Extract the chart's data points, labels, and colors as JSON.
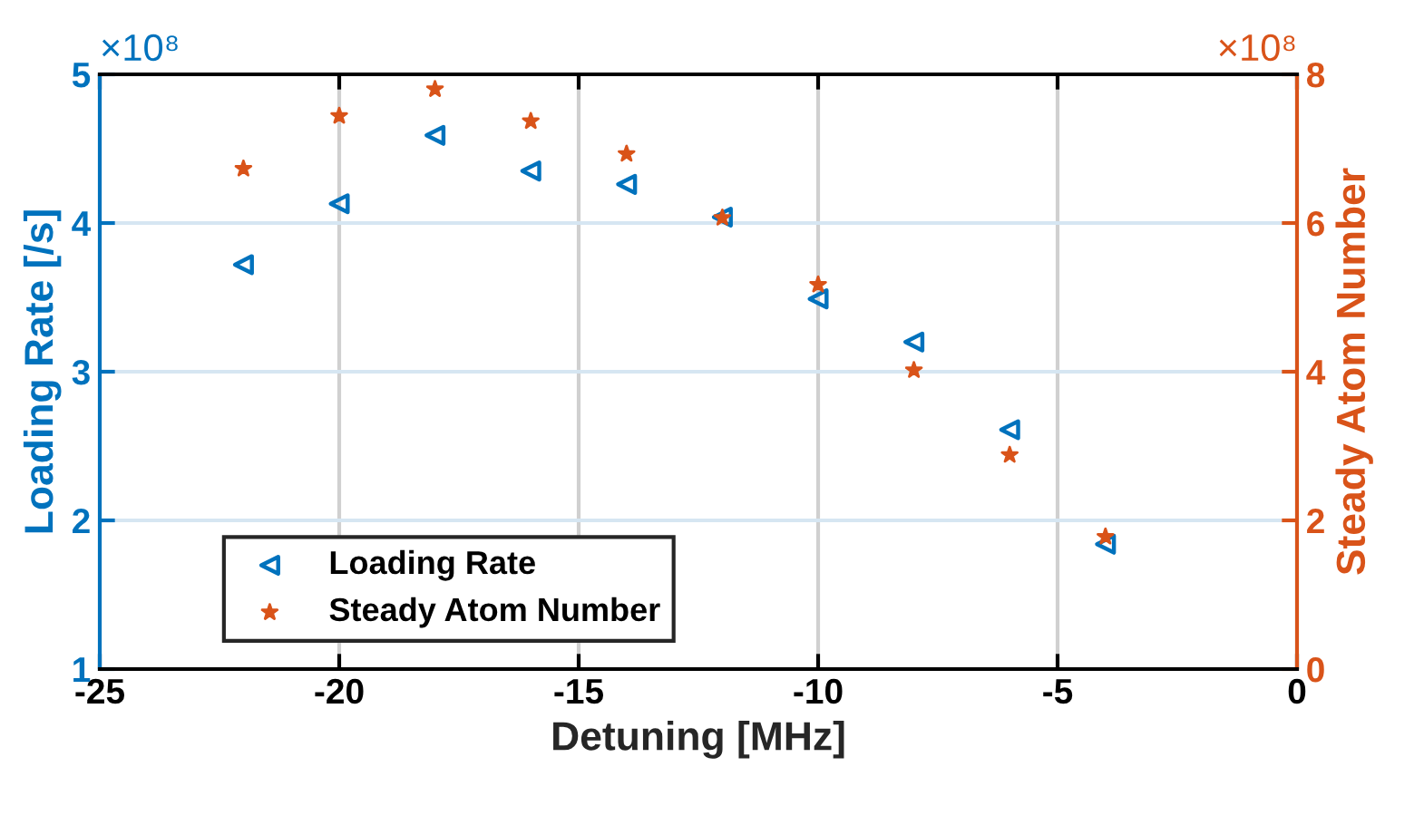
{
  "chart_data": {
    "type": "scatter",
    "xlabel": "Detuning [MHz]",
    "ylabel": "Loading Rate [/s]",
    "y2label": "Steady Atom Number",
    "xlim": [
      -25,
      0
    ],
    "xticks": [
      -25,
      -20,
      -15,
      -10,
      -5,
      0
    ],
    "ylim": [
      1,
      5
    ],
    "yticks": [
      1,
      2,
      3,
      4,
      5
    ],
    "y2lim": [
      0,
      8
    ],
    "y2ticks": [
      0,
      2,
      4,
      6,
      8
    ],
    "grid": true,
    "legend": "bottom left",
    "annotations": [
      "×10⁸",
      "×10⁸"
    ],
    "series": [
      {
        "name": "Loading Rate",
        "color": "#0072bd",
        "marker": "triangle",
        "x": [
          -22,
          -20,
          -18,
          -16,
          -14,
          -12,
          -10,
          -8,
          -6,
          -4
        ],
        "values": [
          3.72,
          4.13,
          4.59,
          4.35,
          4.26,
          4.04,
          3.49,
          3.2,
          2.61,
          1.84
        ]
      },
      {
        "name": "Steady Atom Number",
        "color": "#d95319",
        "marker": "star",
        "axis": "y2",
        "x": [
          -22,
          -20,
          -18,
          -16,
          -14,
          -12,
          -10,
          -8,
          -6,
          -4
        ],
        "values": [
          6.73,
          7.44,
          7.8,
          7.37,
          6.93,
          6.07,
          5.17,
          4.02,
          2.88,
          1.78
        ]
      }
    ]
  }
}
